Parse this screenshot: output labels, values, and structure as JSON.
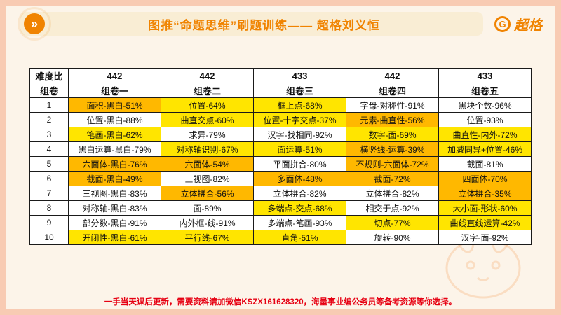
{
  "header": {
    "title": "图推“命题思维”刷题训练—— 超格刘义恒",
    "arrow_icon": "»",
    "brand": "超格",
    "brand_icon": "G"
  },
  "colors": {
    "yellow": "#FFE500",
    "orange": "#FFB800",
    "white": "#FFFFFF",
    "accent": "#F08300",
    "frame": "#F8CBB3",
    "background": "#FCF4E9",
    "footer_red": "#E60012"
  },
  "table": {
    "corner_labels": {
      "difficulty": "难度比",
      "group": "组卷"
    },
    "difficulties": [
      "442",
      "442",
      "433",
      "442",
      "433"
    ],
    "groups": [
      "组卷一",
      "组卷二",
      "组卷三",
      "组卷四",
      "组卷五"
    ],
    "rows": [
      {
        "num": "1",
        "cells": [
          {
            "text": "面积-黑白-51%",
            "bg": "orange"
          },
          {
            "text": "位置-64%",
            "bg": "yellow"
          },
          {
            "text": "框上点-68%",
            "bg": "yellow"
          },
          {
            "text": "字母-对称性-91%",
            "bg": "white"
          },
          {
            "text": "黑块个数-96%",
            "bg": "white"
          }
        ]
      },
      {
        "num": "2",
        "cells": [
          {
            "text": "位置-黑白-88%",
            "bg": "white"
          },
          {
            "text": "曲直交点-60%",
            "bg": "yellow"
          },
          {
            "text": "位置-十字交点-37%",
            "bg": "yellow"
          },
          {
            "text": "元素-曲直性-56%",
            "bg": "orange"
          },
          {
            "text": "位置-93%",
            "bg": "white"
          }
        ]
      },
      {
        "num": "3",
        "cells": [
          {
            "text": "笔画-黑白-62%",
            "bg": "yellow"
          },
          {
            "text": "求异-79%",
            "bg": "white"
          },
          {
            "text": "汉字-找相同-92%",
            "bg": "white"
          },
          {
            "text": "数字-面-69%",
            "bg": "yellow"
          },
          {
            "text": "曲直性-内外-72%",
            "bg": "yellow"
          }
        ]
      },
      {
        "num": "4",
        "cells": [
          {
            "text": "黑白运算-黑白-79%",
            "bg": "white"
          },
          {
            "text": "对称轴识别-67%",
            "bg": "yellow"
          },
          {
            "text": "面运算-51%",
            "bg": "yellow"
          },
          {
            "text": "横竖线-运算-39%",
            "bg": "orange"
          },
          {
            "text": "加减同异+位置-46%",
            "bg": "yellow"
          }
        ]
      },
      {
        "num": "5",
        "cells": [
          {
            "text": "六面体-黑白-76%",
            "bg": "orange"
          },
          {
            "text": "六面体-54%",
            "bg": "orange"
          },
          {
            "text": "平面拼合-80%",
            "bg": "white"
          },
          {
            "text": "不规则-六面体-72%",
            "bg": "orange"
          },
          {
            "text": "截面-81%",
            "bg": "white"
          }
        ]
      },
      {
        "num": "6",
        "cells": [
          {
            "text": "截面-黑白-49%",
            "bg": "orange"
          },
          {
            "text": "三视图-82%",
            "bg": "white"
          },
          {
            "text": "多面体-48%",
            "bg": "orange"
          },
          {
            "text": "截面-72%",
            "bg": "orange"
          },
          {
            "text": "四面体-70%",
            "bg": "orange"
          }
        ]
      },
      {
        "num": "7",
        "cells": [
          {
            "text": "三视图-黑白-83%",
            "bg": "white"
          },
          {
            "text": "立体拼合-56%",
            "bg": "orange"
          },
          {
            "text": "立体拼合-82%",
            "bg": "white"
          },
          {
            "text": "立体拼合-82%",
            "bg": "white"
          },
          {
            "text": "立体拼合-35%",
            "bg": "orange"
          }
        ]
      },
      {
        "num": "8",
        "cells": [
          {
            "text": "对称轴-黑白-83%",
            "bg": "white"
          },
          {
            "text": "面-89%",
            "bg": "white"
          },
          {
            "text": "多端点-交点-68%",
            "bg": "yellow"
          },
          {
            "text": "相交于点-92%",
            "bg": "white"
          },
          {
            "text": "大小面-形状-60%",
            "bg": "yellow"
          }
        ]
      },
      {
        "num": "9",
        "cells": [
          {
            "text": "部分数-黑白-91%",
            "bg": "white"
          },
          {
            "text": "内外框-线-91%",
            "bg": "white"
          },
          {
            "text": "多端点-笔画-93%",
            "bg": "white"
          },
          {
            "text": "切点-77%",
            "bg": "yellow"
          },
          {
            "text": "曲线直线运算-42%",
            "bg": "yellow"
          }
        ]
      },
      {
        "num": "10",
        "cells": [
          {
            "text": "开闭性-黑白-61%",
            "bg": "yellow"
          },
          {
            "text": "平行线-67%",
            "bg": "yellow"
          },
          {
            "text": "直角-51%",
            "bg": "yellow"
          },
          {
            "text": "旋转-90%",
            "bg": "white"
          },
          {
            "text": "汉字-面-92%",
            "bg": "white"
          }
        ]
      }
    ]
  },
  "footer": {
    "note": "一手当天课后更新，需要资料请加微信KSZX161628320，海量事业编公务员等备考资源等你选择。"
  }
}
